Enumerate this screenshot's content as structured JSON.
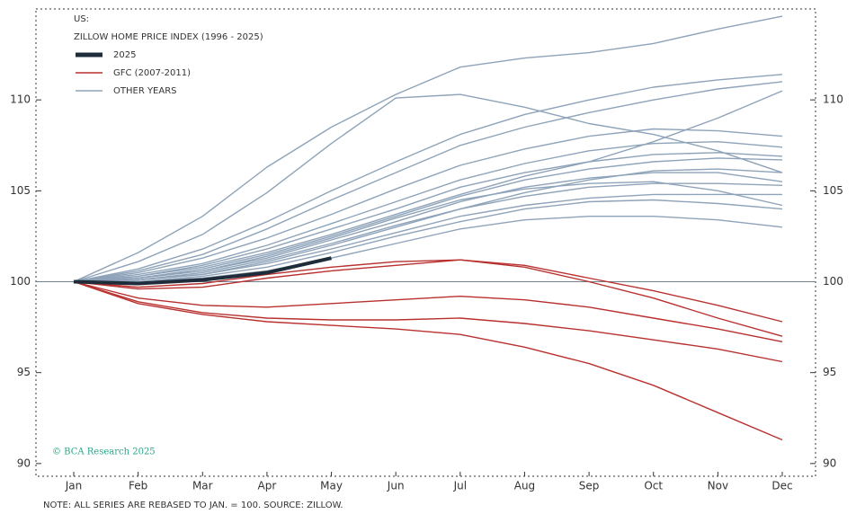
{
  "chart_data": {
    "type": "line",
    "title": "US:",
    "subtitle": "ZILLOW HOME PRICE INDEX (1996 - 2025)",
    "annotations": [
      "© BCA Research 2025",
      "NOTE: ALL SERIES ARE REBASED TO JAN. = 100. SOURCE: ZILLOW."
    ],
    "categories": [
      "Jan",
      "Feb",
      "Mar",
      "Apr",
      "May",
      "Jun",
      "Jul",
      "Aug",
      "Sep",
      "Oct",
      "Nov",
      "Dec"
    ],
    "ylim": [
      89.3,
      115
    ],
    "yticks": [
      90,
      95,
      100,
      105,
      110
    ],
    "baseline": 100,
    "legend": "top-left",
    "series": [
      {
        "name": "2025",
        "color": "#1f2d3a",
        "values": [
          100,
          99.9,
          100.1,
          100.5,
          101.3,
          null,
          null,
          null,
          null,
          null,
          null,
          null
        ]
      },
      {
        "name": "GFC (2007-2011)",
        "color": "#b8312f",
        "lines": [
          [
            100,
            99.7,
            99.9,
            100.4,
            100.8,
            101.1,
            101.2,
            100.9,
            100.2,
            99.5,
            98.7,
            97.8
          ],
          [
            100,
            99.6,
            99.7,
            100.2,
            100.6,
            100.9,
            101.2,
            100.8,
            100.0,
            99.1,
            98.0,
            97.0
          ],
          [
            100,
            99.1,
            98.7,
            98.6,
            98.8,
            99.0,
            99.2,
            99.0,
            98.6,
            98.0,
            97.4,
            96.7
          ],
          [
            100,
            98.9,
            98.3,
            98.0,
            97.9,
            97.9,
            98.0,
            97.7,
            97.3,
            96.8,
            96.3,
            95.6
          ],
          [
            100,
            98.8,
            98.2,
            97.8,
            97.6,
            97.4,
            97.1,
            96.4,
            95.5,
            94.3,
            92.8,
            91.3
          ]
        ]
      },
      {
        "name": "OTHER YEARS",
        "color": "#8ea3b9",
        "lines": [
          [
            100,
            101.6,
            103.6,
            106.3,
            108.5,
            110.3,
            111.8,
            112.3,
            112.6,
            113.1,
            113.9,
            114.6
          ],
          [
            100,
            101.1,
            102.6,
            104.9,
            107.6,
            110.1,
            110.3,
            109.6,
            108.7,
            108.1,
            107.2,
            106.0
          ],
          [
            100,
            100.7,
            101.8,
            103.3,
            105.0,
            106.6,
            108.1,
            109.2,
            110.0,
            110.7,
            111.1,
            111.4
          ],
          [
            100,
            100.6,
            101.5,
            102.9,
            104.5,
            106.0,
            107.5,
            108.5,
            109.3,
            110.0,
            110.6,
            111.0
          ],
          [
            100,
            100.5,
            101.3,
            102.4,
            103.7,
            105.1,
            106.4,
            107.3,
            108.0,
            108.4,
            108.3,
            108.0
          ],
          [
            100,
            100.4,
            101.0,
            102.0,
            103.2,
            104.4,
            105.6,
            106.5,
            107.2,
            107.6,
            107.7,
            107.4
          ],
          [
            100,
            100.3,
            100.8,
            101.6,
            102.6,
            103.7,
            104.8,
            105.8,
            106.6,
            107.7,
            109.0,
            110.5
          ],
          [
            100,
            100.3,
            100.9,
            101.8,
            102.9,
            104.0,
            105.2,
            106.0,
            106.6,
            107.0,
            107.1,
            106.9
          ],
          [
            100,
            100.2,
            100.7,
            101.5,
            102.5,
            103.6,
            104.7,
            105.6,
            106.2,
            106.6,
            106.8,
            106.7
          ],
          [
            100,
            100.2,
            100.6,
            101.3,
            102.3,
            103.3,
            104.4,
            105.2,
            105.7,
            106.0,
            106.0,
            105.5
          ],
          [
            100,
            100.1,
            100.5,
            101.2,
            102.1,
            103.1,
            104.0,
            104.7,
            105.2,
            105.4,
            105.4,
            105.3
          ],
          [
            100,
            100.1,
            100.4,
            101.0,
            101.8,
            102.7,
            103.6,
            104.2,
            104.6,
            104.8,
            104.8,
            104.8
          ],
          [
            100,
            100.0,
            100.3,
            100.8,
            101.6,
            102.5,
            103.3,
            104.0,
            104.4,
            104.5,
            104.3,
            104.0
          ],
          [
            100,
            100.0,
            100.2,
            100.6,
            101.3,
            102.1,
            102.9,
            103.4,
            103.6,
            103.6,
            103.4,
            103.0
          ],
          [
            100,
            100.1,
            100.4,
            101.1,
            102.0,
            103.0,
            104.0,
            104.9,
            105.6,
            106.1,
            106.2,
            106.0
          ],
          [
            100,
            100.2,
            100.6,
            101.4,
            102.4,
            103.5,
            104.5,
            105.1,
            105.4,
            105.5,
            105.0,
            104.2
          ]
        ]
      }
    ]
  }
}
